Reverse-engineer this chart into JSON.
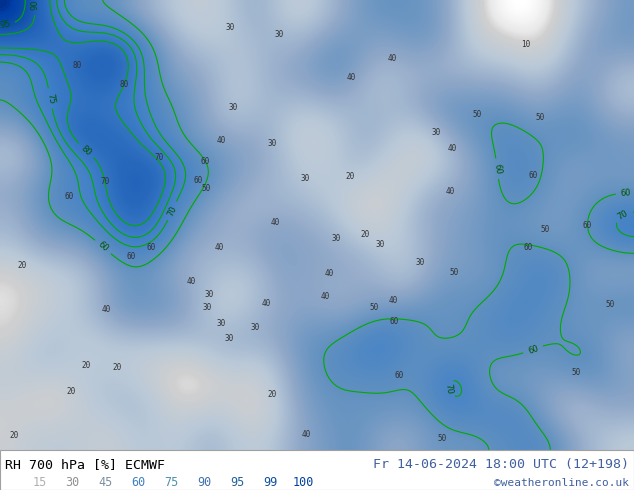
{
  "title_left": "RH 700 hPa [%] ECMWF",
  "title_right": "Fr 14-06-2024 18:00 UTC (12+198)",
  "credit": "©weatheronline.co.uk",
  "legend_values": [
    15,
    30,
    45,
    60,
    75,
    90,
    95,
    99,
    100
  ],
  "legend_colors": [
    "#d0d0d0",
    "#b0b8c8",
    "#90a8c0",
    "#6090c0",
    "#4080c0",
    "#2060b0",
    "#1050a0",
    "#0040a0",
    "#003090"
  ],
  "bg_color": "#ffffff",
  "map_bg": "#c8d8e8",
  "border_color": "#a0a0a0",
  "label_color_left": "#000000",
  "label_color_right": "#4060a0",
  "credit_color": "#4060a0",
  "fig_width": 6.34,
  "fig_height": 4.9,
  "dpi": 100,
  "bottom_bar_height": 0.082,
  "font_size_title": 9.5,
  "font_size_legend": 8.5,
  "font_size_credit": 8.0
}
